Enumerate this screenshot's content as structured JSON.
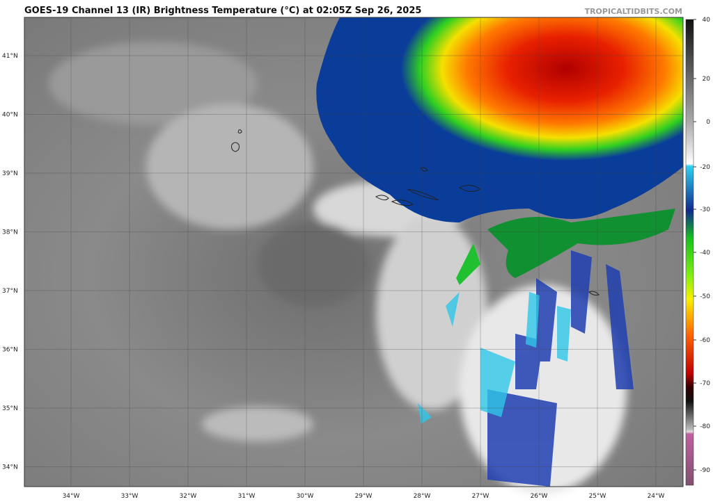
{
  "header": {
    "title": "GOES-19 Channel 13 (IR) Brightness Temperature (°C) at 02:05Z Sep 26, 2025",
    "source": "TROPICALTIDBITS.COM"
  },
  "map": {
    "latitudes": [
      "41°N",
      "40°N",
      "39°N",
      "38°N",
      "37°N",
      "36°N",
      "35°N",
      "34°N"
    ],
    "longitudes": [
      "34°W",
      "33°W",
      "32°W",
      "31°W",
      "30°W",
      "29°W",
      "28°W",
      "27°W",
      "26°W",
      "25°W",
      "24°W"
    ]
  },
  "colorbar": {
    "ticks": [
      40,
      20,
      0,
      -20,
      -30,
      -40,
      -50,
      -60,
      -70,
      -80,
      -90
    ]
  }
}
